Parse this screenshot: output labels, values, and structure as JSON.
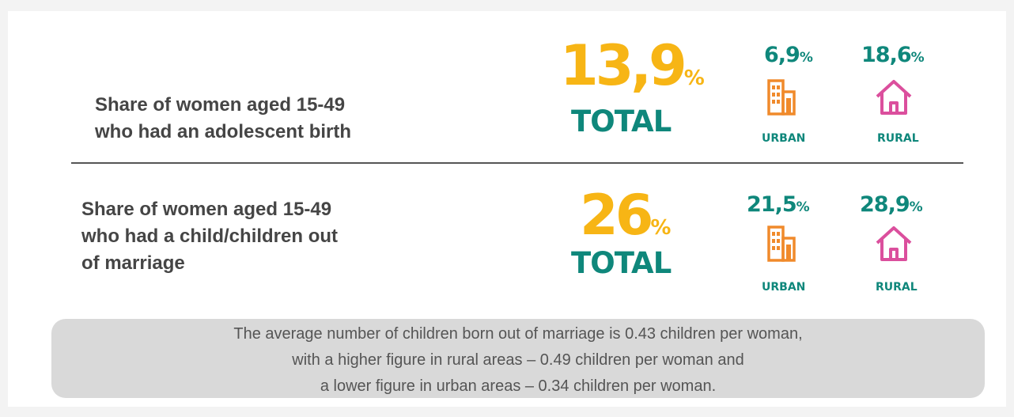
{
  "rows": [
    {
      "label_lines": [
        "Share of women aged 15-49",
        "who had an adolescent birth"
      ],
      "total": {
        "value": "13,9",
        "label": "TOTAL"
      },
      "urban": {
        "value": "6,9",
        "label": "URBAN"
      },
      "rural": {
        "value": "18,6",
        "label": "RURAL"
      }
    },
    {
      "label_lines": [
        "Share of women aged 15-49",
        "who had a child/children out",
        "of marriage"
      ],
      "total": {
        "value": "26",
        "label": "TOTAL"
      },
      "urban": {
        "value": "21,5",
        "label": "URBAN"
      },
      "rural": {
        "value": "28,9",
        "label": "RURAL"
      }
    }
  ],
  "percent_sign": "%",
  "note_lines": [
    "The average number of children born out of marriage is 0.43 children per woman,",
    "with a higher figure in rural areas – 0.49 children per woman and",
    "a lower figure in urban areas – 0.34 children per woman."
  ]
}
